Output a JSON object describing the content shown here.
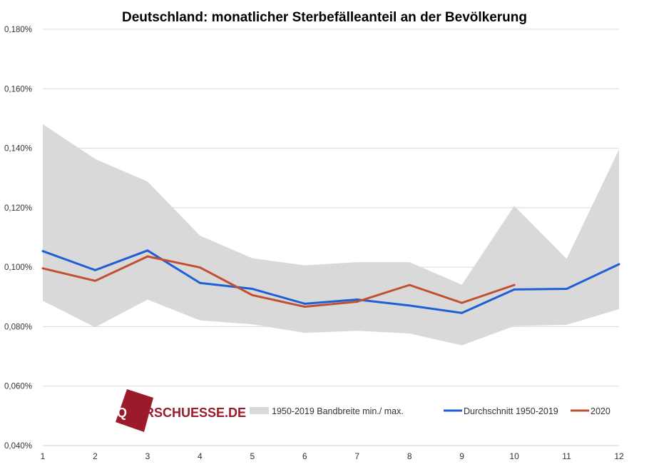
{
  "chart_data": {
    "type": "line",
    "title": "Deutschland: monatlicher Sterbefälleanteil an der Bevölkerung",
    "x": [
      1,
      2,
      3,
      4,
      5,
      6,
      7,
      8,
      9,
      10,
      11,
      12
    ],
    "x_tick_labels": [
      "1",
      "2",
      "3",
      "4",
      "5",
      "6",
      "7",
      "8",
      "9",
      "10",
      "11",
      "12"
    ],
    "ylim": [
      0.04,
      0.18
    ],
    "y_ticks": [
      0.04,
      0.06,
      0.08,
      0.1,
      0.12,
      0.14,
      0.16,
      0.18
    ],
    "y_tick_labels": [
      "0,040%",
      "0,060%",
      "0,080%",
      "0,100%",
      "0,120%",
      "0,140%",
      "0,160%",
      "0,180%"
    ],
    "grid": true,
    "legend_position": "bottom-right",
    "band": {
      "name": "1950-2019 Bandbreite min./ max.",
      "color": "#d9d9d9",
      "min": [
        0.0887,
        0.0798,
        0.0891,
        0.0821,
        0.0808,
        0.0779,
        0.0786,
        0.0777,
        0.0737,
        0.0802,
        0.0806,
        0.0859
      ],
      "max": [
        0.1481,
        0.1364,
        0.1288,
        0.1106,
        0.103,
        0.1006,
        0.1017,
        0.1017,
        0.0941,
        0.1206,
        0.1028,
        0.1396
      ]
    },
    "series": [
      {
        "name": "Durchschnitt 1950-2019",
        "color": "#1f5fd6",
        "values": [
          0.1054,
          0.099,
          0.1056,
          0.0947,
          0.0927,
          0.0877,
          0.0891,
          0.0871,
          0.0846,
          0.0925,
          0.0927,
          0.101
        ]
      },
      {
        "name": "2020",
        "color": "#c0502f",
        "values": [
          0.0996,
          0.0954,
          0.1036,
          0.0999,
          0.0906,
          0.0867,
          0.0884,
          0.094,
          0.088,
          0.094,
          null,
          null
        ]
      }
    ]
  },
  "logo": {
    "text_prefix": "Q",
    "text_rest": "UERSCHUESSE.DE",
    "accent_color": "#9c1b2a"
  }
}
